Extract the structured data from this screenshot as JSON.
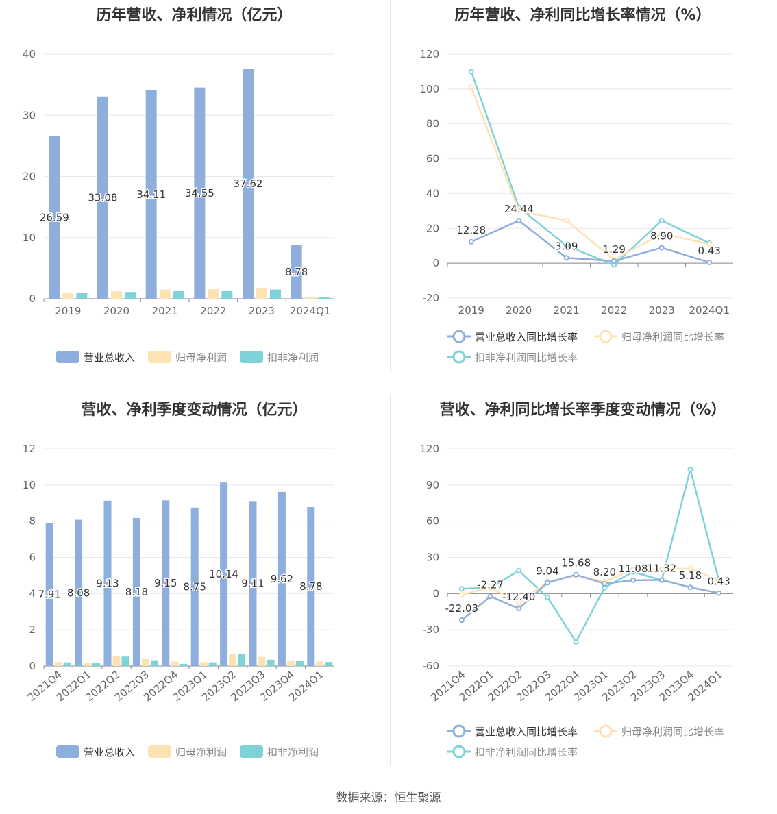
{
  "colors": {
    "revenue": "#8eaedd",
    "net_profit": "#fde3b4",
    "deducted_profit": "#7ed3d8",
    "axis_text": "#666666",
    "grid": "#e8e8ee",
    "label_text": "#333333"
  },
  "source": "数据来源：恒生聚源",
  "chart_data": [
    {
      "type": "bar",
      "title": "历年营收、净利情况（亿元）",
      "categories": [
        "2019",
        "2020",
        "2021",
        "2022",
        "2023",
        "2024Q1"
      ],
      "ylim": [
        0,
        40
      ],
      "yticks": [
        "0",
        "10",
        "20",
        "30",
        "40"
      ],
      "series": [
        {
          "name": "营业总收入",
          "values": [
            26.59,
            33.08,
            34.11,
            34.55,
            37.62,
            8.78
          ],
          "labels": [
            "26.59",
            "33.08",
            "34.11",
            "34.55",
            "37.62",
            "8.78"
          ]
        },
        {
          "name": "归母净利润",
          "values": [
            0.9,
            1.2,
            1.5,
            1.55,
            1.8,
            0.3
          ]
        },
        {
          "name": "扣非净利润",
          "values": [
            0.9,
            1.1,
            1.3,
            1.25,
            1.5,
            0.25
          ]
        }
      ],
      "legend": "bottom-center",
      "grid": true
    },
    {
      "type": "line",
      "title": "历年营收、净利同比增长率情况（%）",
      "categories": [
        "2019",
        "2020",
        "2021",
        "2022",
        "2023",
        "2024Q1"
      ],
      "ylim": [
        -20,
        120
      ],
      "yticks": [
        "-20",
        "0",
        "20",
        "40",
        "60",
        "80",
        "100",
        "120"
      ],
      "series": [
        {
          "name": "营业总收入同比增长率",
          "values": [
            12.28,
            24.44,
            3.09,
            1.29,
            8.9,
            0.43
          ],
          "labels": [
            "12.28",
            "24.44",
            "3.09",
            "1.29",
            "8.90",
            "0.43"
          ]
        },
        {
          "name": "归母净利润同比增长率",
          "values": [
            101,
            30,
            24.5,
            2,
            17,
            11
          ]
        },
        {
          "name": "扣非净利润同比增长率",
          "values": [
            110,
            32,
            10,
            -1,
            24.5,
            11.5
          ]
        }
      ],
      "legend": "bottom",
      "grid": true
    },
    {
      "type": "bar",
      "title": "营收、净利季度变动情况（亿元）",
      "categories": [
        "2021Q4",
        "2022Q1",
        "2022Q2",
        "2022Q3",
        "2022Q4",
        "2023Q1",
        "2023Q2",
        "2023Q3",
        "2023Q4",
        "2024Q1"
      ],
      "ylim": [
        0,
        12
      ],
      "yticks": [
        "0",
        "2",
        "4",
        "6",
        "8",
        "10",
        "12"
      ],
      "series": [
        {
          "name": "营业总收入",
          "values": [
            7.91,
            8.08,
            9.13,
            8.18,
            9.15,
            8.75,
            10.14,
            9.11,
            9.62,
            8.78
          ],
          "labels": [
            "7.91",
            "8.08",
            "9.13",
            "8.18",
            "9.15",
            "8.75",
            "10.14",
            "9.11",
            "9.62",
            "8.78"
          ]
        },
        {
          "name": "归母净利润",
          "values": [
            0.22,
            0.18,
            0.55,
            0.38,
            0.25,
            0.22,
            0.68,
            0.5,
            0.3,
            0.25
          ]
        },
        {
          "name": "扣非净利润",
          "values": [
            0.2,
            0.16,
            0.52,
            0.32,
            0.12,
            0.2,
            0.65,
            0.35,
            0.28,
            0.22
          ]
        }
      ],
      "legend": "bottom-center",
      "grid": true
    },
    {
      "type": "line",
      "title": "营收、净利同比增长率季度变动情况（%）",
      "categories": [
        "2021Q4",
        "2022Q1",
        "2022Q2",
        "2022Q3",
        "2022Q4",
        "2023Q1",
        "2023Q2",
        "2023Q3",
        "2023Q4",
        "2024Q1"
      ],
      "ylim": [
        -60,
        120
      ],
      "yticks": [
        "-60",
        "-30",
        "0",
        "30",
        "60",
        "90",
        "120"
      ],
      "series": [
        {
          "name": "营业总收入同比增长率",
          "values": [
            -22.03,
            -2.27,
            -12.4,
            9.04,
            15.68,
            8.2,
            11.08,
            11.32,
            5.18,
            0.43
          ],
          "labels": [
            "-22.03",
            "-2.27",
            "-12.40",
            "9.04",
            "15.68",
            "8.20",
            "11.08",
            "11.32",
            "5.18",
            "0.43"
          ]
        },
        {
          "name": "归母净利润同比增长率",
          "values": [
            -1,
            5,
            -8,
            10,
            15,
            10,
            20,
            20,
            21,
            11
          ]
        },
        {
          "name": "扣非净利润同比增长率",
          "values": [
            4,
            5,
            19,
            -3,
            -40,
            5,
            18,
            11,
            103,
            11
          ]
        }
      ],
      "legend": "bottom",
      "grid": true
    }
  ]
}
